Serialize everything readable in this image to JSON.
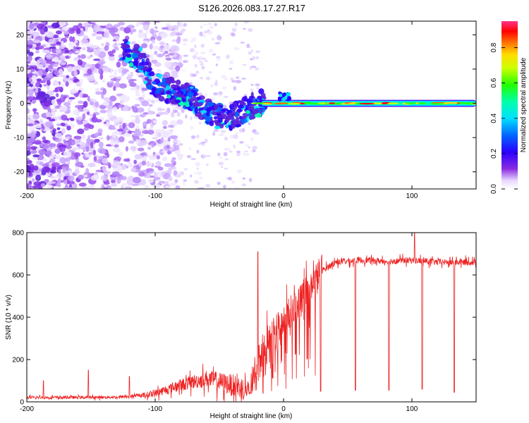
{
  "title": "S126.2026.083.17.27.R17",
  "chart_data": [
    {
      "type": "heatmap",
      "name": "spectrogram",
      "xlabel": "Height of straight line (km)",
      "ylabel": "Frequency (Hz)",
      "xlim": [
        -200,
        150
      ],
      "ylim": [
        -25,
        24
      ],
      "x_ticks": [
        -200,
        -100,
        0,
        100
      ],
      "x_tick_labels": [
        "-200",
        "-100",
        "0",
        "100"
      ],
      "y_ticks": [
        -20,
        -10,
        0,
        10,
        20
      ],
      "y_tick_labels": [
        "-20",
        "-10",
        "0",
        "10",
        "20"
      ],
      "colorbar": {
        "label": "Normalized spectral amplitude",
        "range": [
          0,
          0.95
        ],
        "ticks": [
          0.0,
          0.2,
          0.4,
          0.6,
          0.8
        ],
        "tick_labels": [
          "0.0",
          "0.2",
          "0.4",
          "0.6",
          "0.8"
        ]
      },
      "ridge": {
        "x": [
          -125,
          -110,
          -100,
          -90,
          -80,
          -70,
          -60,
          -50,
          -40,
          -30,
          -20,
          -10,
          0,
          10,
          50,
          100,
          150
        ],
        "y": [
          16,
          12,
          5,
          4,
          3,
          1,
          -2,
          -4,
          -4,
          -2,
          0,
          0,
          0,
          0,
          0,
          0,
          0
        ]
      }
    },
    {
      "type": "line",
      "name": "snr",
      "xlabel": "Height of straight line (km)",
      "ylabel": "SNR (10 * v/v)",
      "xlim": [
        -200,
        150
      ],
      "ylim": [
        0,
        800
      ],
      "x_ticks": [
        -200,
        -100,
        0,
        100
      ],
      "x_tick_labels": [
        "-200",
        "-100",
        "0",
        "100"
      ],
      "y_ticks": [
        0,
        200,
        400,
        600,
        800
      ],
      "y_tick_labels": [
        "0",
        "200",
        "400",
        "600",
        "800"
      ],
      "color": "#ee2222",
      "trend": {
        "x": [
          -200,
          -130,
          -110,
          -100,
          -80,
          -60,
          -40,
          -25,
          -20,
          -10,
          0,
          10,
          20,
          30,
          40,
          60,
          80,
          100,
          120,
          150
        ],
        "y": [
          20,
          22,
          30,
          40,
          80,
          110,
          80,
          50,
          200,
          300,
          380,
          450,
          530,
          620,
          660,
          670,
          665,
          670,
          660,
          660
        ]
      },
      "dips": [
        {
          "x": 29,
          "y": 50
        },
        {
          "x": 56,
          "y": 55
        },
        {
          "x": 82,
          "y": 55
        },
        {
          "x": 108,
          "y": 60
        },
        {
          "x": 133,
          "y": 45
        }
      ],
      "spikes": [
        {
          "x": -187,
          "y": 100
        },
        {
          "x": -152,
          "y": 150
        },
        {
          "x": -120,
          "y": 120
        },
        {
          "x": -20,
          "y": 710
        },
        {
          "x": 102,
          "y": 800
        }
      ]
    }
  ]
}
